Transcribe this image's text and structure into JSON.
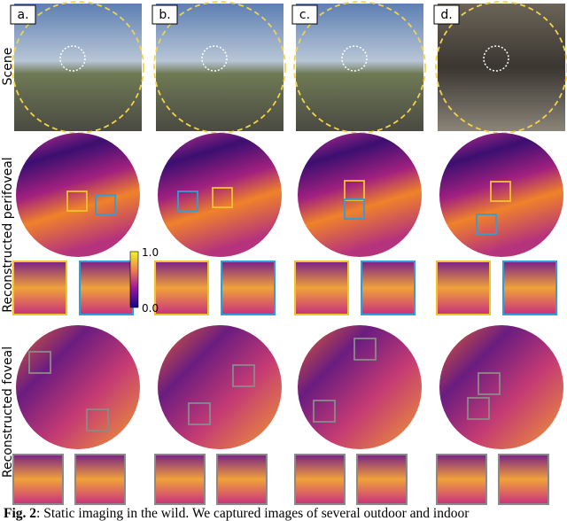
{
  "panels": [
    "a.",
    "b.",
    "c.",
    "d."
  ],
  "row_labels": [
    "Scene",
    "Reconstructed perifoveal",
    "Reconstructed foveal"
  ],
  "colorbar": {
    "max_label": "1.0",
    "min_label": "0.0"
  },
  "caption": {
    "label": "Fig. 2",
    "text": ": Static imaging in the wild. We captured images of several outdoor and indoor"
  }
}
